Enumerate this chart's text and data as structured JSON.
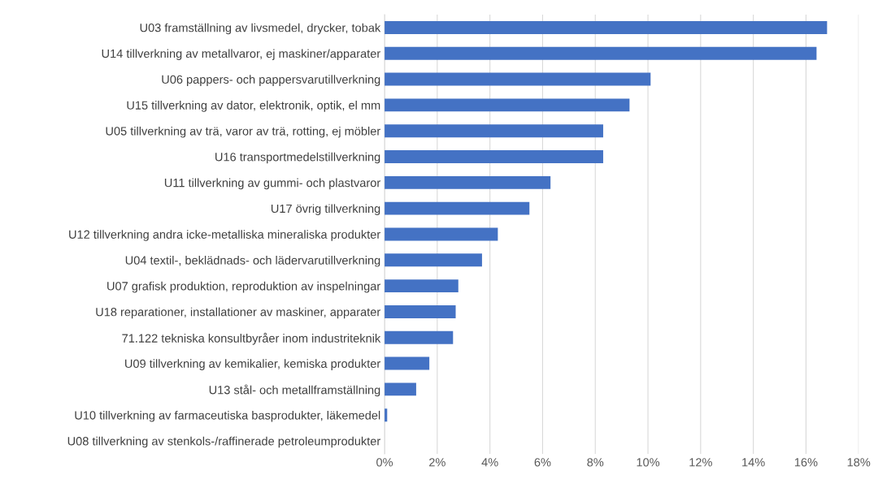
{
  "chart_data": {
    "type": "bar",
    "orientation": "horizontal",
    "categories": [
      "U03 framställning av livsmedel, drycker, tobak",
      "U14 tillverkning av metallvaror, ej maskiner/apparater",
      "U06 pappers- och pappersvarutillverkning",
      "U15 tillverkning av dator, elektronik, optik, el mm",
      "U05 tillverkning av trä, varor av trä, rotting, ej möbler",
      "U16 transportmedelstillverkning",
      "U11 tillverkning av gummi- och plastvaror",
      "U17 övrig tillverkning",
      "U12 tillverkning andra icke-metalliska mineraliska produkter",
      "U04 textil-, beklädnads- och lädervarutillverkning",
      "U07 grafisk produktion, reproduktion av inspelningar",
      "U18 reparationer, installationer av maskiner, apparater",
      "71.122 tekniska konsultbyråer inom industriteknik",
      "U09 tillverkning av kemikalier, kemiska produkter",
      "U13 stål- och metallframställning",
      "U10 tillverkning av farmaceutiska basprodukter, läkemedel",
      "U08 tillverkning av stenkols-/raffinerade petroleumprodukter"
    ],
    "values": [
      16.8,
      16.4,
      10.1,
      9.3,
      8.3,
      8.3,
      6.3,
      5.5,
      4.3,
      3.7,
      2.8,
      2.7,
      2.6,
      1.7,
      1.2,
      0.1,
      0
    ],
    "color": "#4472c4",
    "xlim": [
      0,
      18
    ],
    "xticks": [
      {
        "value": 0,
        "label": "0%"
      },
      {
        "value": 2,
        "label": "2%"
      },
      {
        "value": 4,
        "label": "4%"
      },
      {
        "value": 6,
        "label": "6%"
      },
      {
        "value": 8,
        "label": "8%"
      },
      {
        "value": 10,
        "label": "10%"
      },
      {
        "value": 12,
        "label": "12%"
      },
      {
        "value": 14,
        "label": "14%"
      },
      {
        "value": 16,
        "label": "16%"
      },
      {
        "value": 18,
        "label": "18%"
      }
    ],
    "grid": "x"
  }
}
